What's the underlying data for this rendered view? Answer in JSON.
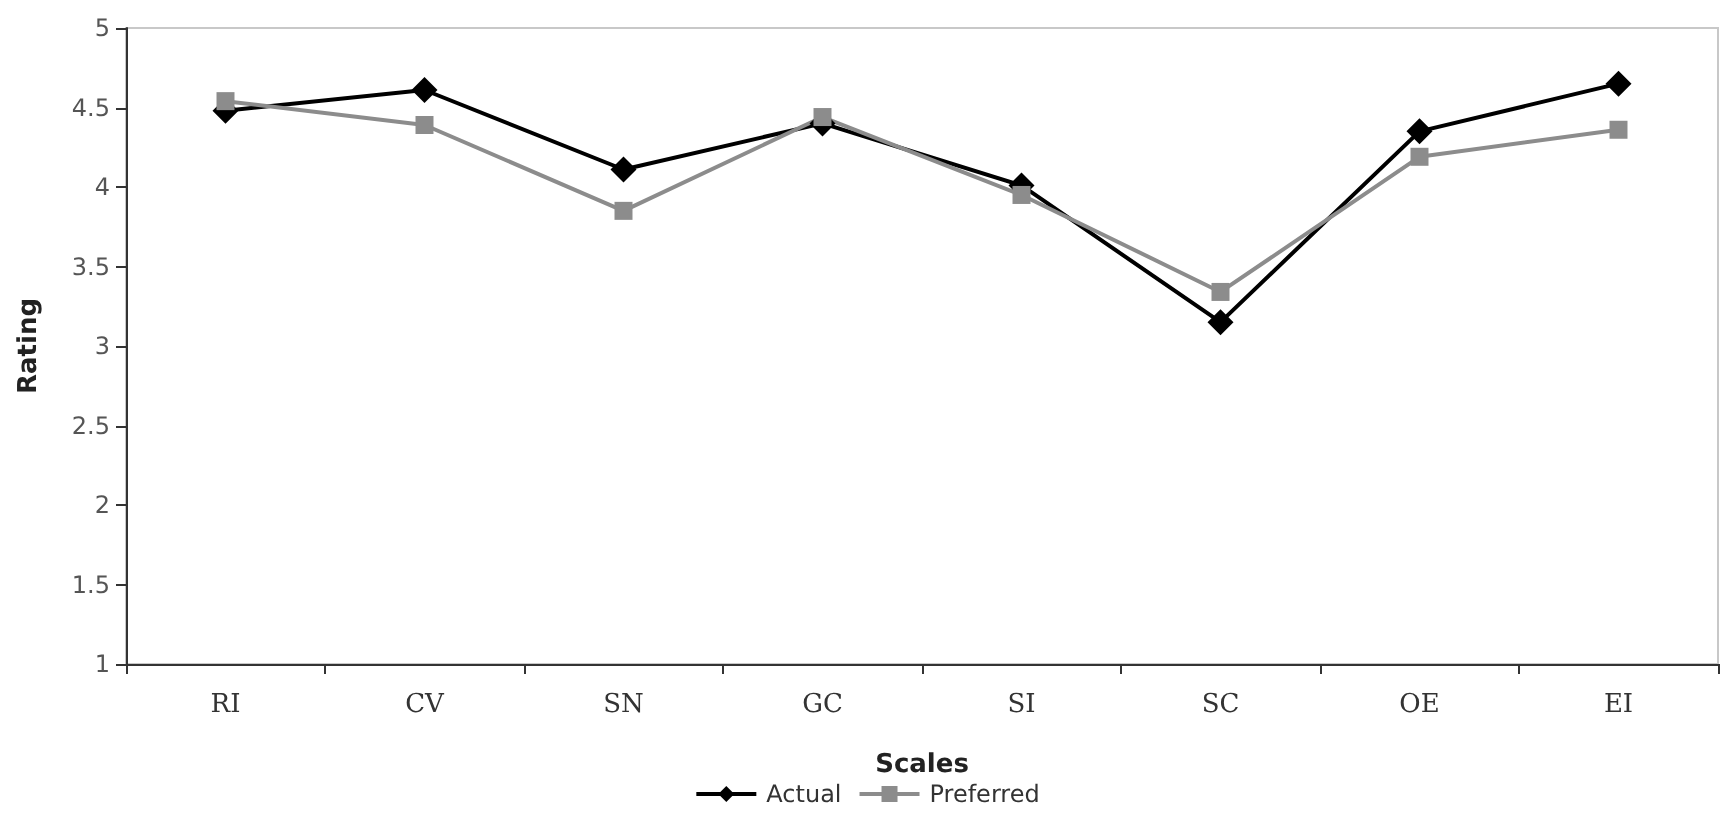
{
  "chart_data": {
    "type": "line",
    "xlabel": "Scales",
    "ylabel": "Rating",
    "categories": [
      "RI",
      "CV",
      "SN",
      "GC",
      "SI",
      "SC",
      "OE",
      "EI"
    ],
    "series": [
      {
        "name": "Actual",
        "color": "#000000",
        "marker": "diamond",
        "values": [
          4.48,
          4.61,
          4.11,
          4.4,
          4.01,
          3.15,
          4.35,
          4.65
        ]
      },
      {
        "name": "Preferred",
        "color": "#8c8c8c",
        "marker": "square",
        "values": [
          4.54,
          4.39,
          3.85,
          4.44,
          3.95,
          3.34,
          4.19,
          4.36
        ]
      }
    ],
    "ylim": [
      1,
      5
    ],
    "yticks": [
      1,
      1.5,
      2,
      2.5,
      3,
      3.5,
      4,
      4.5,
      5
    ],
    "grid": false,
    "legend": "bottom",
    "line_style": "solid"
  }
}
